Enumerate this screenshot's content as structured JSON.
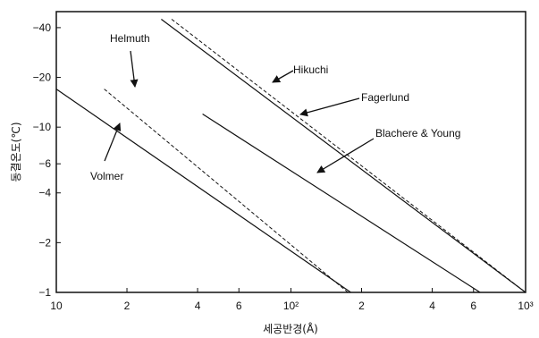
{
  "chart_data": {
    "type": "line",
    "title": "",
    "xlabel": "세공반경(Å)",
    "ylabel": "동결온도(℃)",
    "x_scale": "log",
    "y_scale": "log",
    "xlim": [
      10,
      1000
    ],
    "ylim": [
      -1,
      -50
    ],
    "grid": false,
    "x_ticks": [
      {
        "value": 10,
        "label": "10"
      },
      {
        "value": 20,
        "label": "2"
      },
      {
        "value": 40,
        "label": "4"
      },
      {
        "value": 60,
        "label": "6"
      },
      {
        "value": 100,
        "label": "10²"
      },
      {
        "value": 200,
        "label": "2"
      },
      {
        "value": 400,
        "label": "4"
      },
      {
        "value": 600,
        "label": "6"
      },
      {
        "value": 1000,
        "label": "10³"
      }
    ],
    "y_ticks": [
      {
        "value": -1,
        "label": "−1"
      },
      {
        "value": -2,
        "label": "−2"
      },
      {
        "value": -4,
        "label": "−4"
      },
      {
        "value": -6,
        "label": "−6"
      },
      {
        "value": -10,
        "label": "−10"
      },
      {
        "value": -20,
        "label": "−20"
      },
      {
        "value": -40,
        "label": "−40"
      }
    ],
    "series": [
      {
        "name": "Volmer",
        "style": "solid",
        "x": [
          10,
          180
        ],
        "y": [
          -17,
          -1
        ]
      },
      {
        "name": "Helmuth",
        "style": "dashed",
        "x": [
          16,
          175
        ],
        "y": [
          -17,
          -1
        ]
      },
      {
        "name": "Blachere & Young",
        "style": "solid",
        "x": [
          42,
          640
        ],
        "y": [
          -12,
          -1
        ]
      },
      {
        "name": "Fagerlund",
        "style": "solid",
        "x": [
          28,
          1000
        ],
        "y": [
          -45,
          -1
        ]
      },
      {
        "name": "Hikuchi",
        "style": "dashed",
        "x": [
          31,
          1000
        ],
        "y": [
          -45,
          -1
        ]
      }
    ],
    "annotations": [
      {
        "text": "Helmuth",
        "target_x": 21,
        "target_y": -12
      },
      {
        "text": "Volmer",
        "target_x": 20,
        "target_y": -8
      },
      {
        "text": "Hikuchi",
        "target_x": 120,
        "target_y": -14
      },
      {
        "text": "Fagerlund",
        "target_x": 100,
        "target_y": -9
      },
      {
        "text": "Blachere & Young",
        "target_x": 135,
        "target_y": -3.6
      }
    ]
  }
}
